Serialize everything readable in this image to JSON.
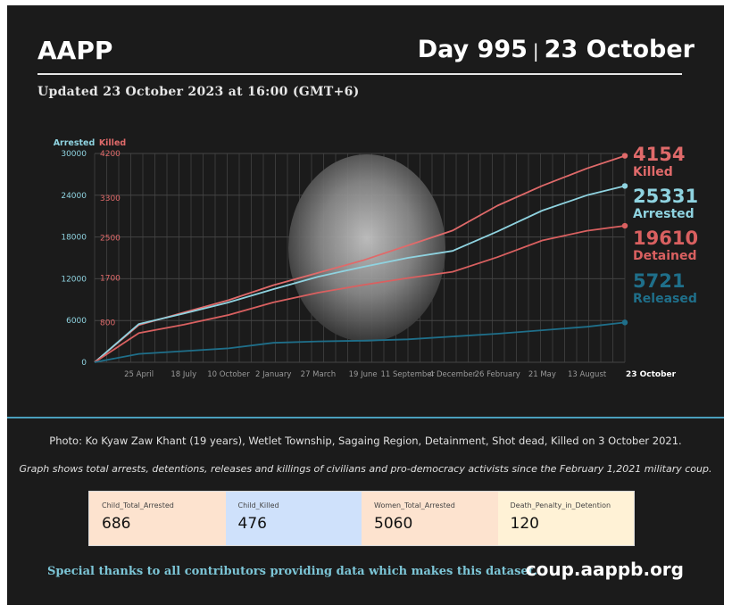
{
  "header": {
    "brand": "AAPP",
    "day": "Day 995",
    "separator": "|",
    "date": "23 October",
    "updated": "Updated 23 October 2023 at 16:00 (GMT+6)"
  },
  "chart_data": {
    "type": "line",
    "x": [
      "2021-02-01",
      "2021-04-25",
      "2021-07-18",
      "2021-10-10",
      "2022-01-02",
      "2022-03-27",
      "2022-06-19",
      "2022-09-11",
      "2022-12-04",
      "2023-02-26",
      "2023-05-21",
      "2023-08-13",
      "2023-10-23"
    ],
    "x_tick_labels": [
      "25 April",
      "18 July",
      "10 October",
      "2 January",
      "27 March",
      "19 June",
      "11 September",
      "4 December",
      "26 February",
      "21 May",
      "13 August",
      "23 October"
    ],
    "left_axis": {
      "label": "Arrested",
      "ticks": [
        0,
        6000,
        12000,
        18000,
        24000,
        30000
      ],
      "ylim": [
        0,
        30000
      ]
    },
    "right_axis": {
      "label": "Killed",
      "ticks": [
        800,
        1700,
        2500,
        3300,
        4200
      ],
      "ylim": [
        0,
        4200
      ]
    },
    "series": [
      {
        "name": "Killed",
        "axis": "right",
        "color": "#e06a6a",
        "values": [
          0,
          750,
          1000,
          1250,
          1550,
          1800,
          2050,
          2350,
          2650,
          3150,
          3550,
          3900,
          4154
        ]
      },
      {
        "name": "Arrested",
        "axis": "left",
        "color": "#8fd3e0",
        "values": [
          0,
          5500,
          7000,
          8600,
          10500,
          12300,
          13700,
          15000,
          16000,
          18800,
          21800,
          24000,
          25331
        ]
      },
      {
        "name": "Detained",
        "axis": "left",
        "color": "#d96060",
        "values": [
          0,
          4200,
          5400,
          6800,
          8600,
          10000,
          11100,
          12100,
          13000,
          15100,
          17500,
          18900,
          19610
        ]
      },
      {
        "name": "Released",
        "axis": "left",
        "color": "#1f6f8a",
        "values": [
          0,
          1200,
          1600,
          2000,
          2800,
          3000,
          3100,
          3300,
          3700,
          4100,
          4600,
          5100,
          5721
        ]
      }
    ],
    "end_labels": [
      {
        "value": "4154",
        "label": "Killed",
        "color": "#e06a6a"
      },
      {
        "value": "25331",
        "label": "Arrested",
        "color": "#8fd3e0"
      },
      {
        "value": "19610",
        "label": "Detained",
        "color": "#d96060"
      },
      {
        "value": "5721",
        "label": "Released",
        "color": "#1f6f8a"
      }
    ],
    "grid": true,
    "legend": "right"
  },
  "captions": {
    "photo": "Photo: Ko Kyaw Zaw Khant (19 years), Wetlet Township, Sagaing Region, Detainment, Shot dead, Killed on 3 October 2021.",
    "note": "Graph shows total arrests, detentions, releases and killings of civilians and pro-democracy activists since the February 1,2021 military coup."
  },
  "stats": [
    {
      "label": "Child_Total_Arrested",
      "value": "686",
      "bg": "#fde3cf"
    },
    {
      "label": "Child_Killed",
      "value": "476",
      "bg": "#cfe1fb"
    },
    {
      "label": "Women_Total_Arrested",
      "value": "5060",
      "bg": "#fde3cf"
    },
    {
      "label": "Death_Penalty_in_Detention",
      "value": "120",
      "bg": "#fff2d6"
    }
  ],
  "footer": {
    "thanks": "Special thanks to all contributors providing data which makes this dataset.",
    "url": "coup.aappb.org"
  }
}
